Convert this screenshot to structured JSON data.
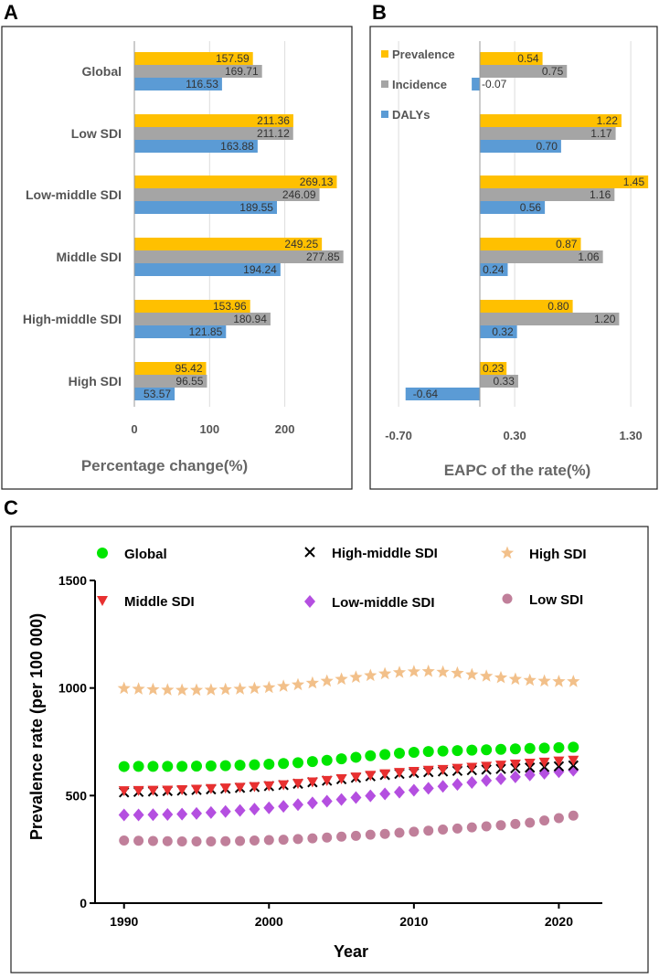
{
  "colors": {
    "prevalence": "#FFC000",
    "incidence": "#A5A5A5",
    "dalys": "#5B9BD5",
    "global": "#00E600",
    "middle": "#E83030",
    "highmiddle": "#000000",
    "lowmiddle": "#B44FE0",
    "high": "#F2C08A",
    "low": "#C07F9A"
  },
  "panels": {
    "a": "A",
    "b": "B",
    "c": "C"
  },
  "chart_data": [
    {
      "type": "bar",
      "orientation": "horizontal",
      "categories": [
        "Global",
        "Low SDI",
        "Low-middle SDI",
        "Middle SDI",
        "High-middle SDI",
        "High SDI"
      ],
      "series": [
        {
          "name": "Prevalence",
          "values": [
            157.59,
            211.36,
            269.13,
            249.25,
            153.96,
            95.42
          ]
        },
        {
          "name": "Incidence",
          "values": [
            169.71,
            211.12,
            246.09,
            277.85,
            180.94,
            96.55
          ]
        },
        {
          "name": "DALYs",
          "values": [
            116.53,
            163.88,
            189.55,
            194.24,
            121.85,
            53.57
          ]
        }
      ],
      "labels": [
        [
          "157.59",
          "169.71",
          "116.53"
        ],
        [
          "211.36",
          "211.12",
          "163.88"
        ],
        [
          "269.13",
          "246.09",
          "189.55"
        ],
        [
          "249.25",
          "277.85",
          "194.24"
        ],
        [
          "153.96",
          "180.94",
          "121.85"
        ],
        [
          "95.42",
          "96.55",
          "53.57"
        ]
      ],
      "xlim": [
        0,
        280
      ],
      "xticks": [
        0,
        100,
        200
      ],
      "xtick_labels": [
        "0",
        "100",
        "200"
      ],
      "xlabel": "Percentage change(%)"
    },
    {
      "type": "bar",
      "orientation": "horizontal",
      "series": [
        {
          "name": "Prevalence",
          "values": [
            0.54,
            1.22,
            1.45,
            0.87,
            0.8,
            0.23
          ]
        },
        {
          "name": "Incidence",
          "values": [
            0.75,
            1.17,
            1.16,
            1.06,
            1.2,
            0.33
          ]
        },
        {
          "name": "DALYs",
          "values": [
            -0.07,
            0.7,
            0.56,
            0.24,
            0.32,
            -0.64
          ]
        }
      ],
      "labels": [
        [
          "0.54",
          "0.75",
          "-0.07"
        ],
        [
          "1.22",
          "1.17",
          "0.70"
        ],
        [
          "1.45",
          "1.16",
          "0.56"
        ],
        [
          "0.87",
          "1.06",
          "0.24"
        ],
        [
          "0.80",
          "1.20",
          "0.32"
        ],
        [
          "0.23",
          "0.33",
          "-0.64"
        ]
      ],
      "legend": [
        "Prevalence",
        "Incidence",
        "DALYs"
      ],
      "xlim": [
        -0.7,
        1.45
      ],
      "xticks": [
        -0.7,
        0.3,
        1.3
      ],
      "xtick_labels": [
        "-0.70",
        "0.30",
        "1.30"
      ],
      "xlabel": "EAPC of the rate(%)"
    },
    {
      "type": "scatter",
      "x": [
        1990,
        1991,
        1992,
        1993,
        1994,
        1995,
        1996,
        1997,
        1998,
        1999,
        2000,
        2001,
        2002,
        2003,
        2004,
        2005,
        2006,
        2007,
        2008,
        2009,
        2010,
        2011,
        2012,
        2013,
        2014,
        2015,
        2016,
        2017,
        2018,
        2019,
        2020,
        2021
      ],
      "series": [
        {
          "name": "Global",
          "values": [
            635,
            636,
            636,
            636,
            636,
            637,
            638,
            639,
            641,
            643,
            646,
            649,
            653,
            658,
            664,
            671,
            678,
            685,
            691,
            697,
            701,
            705,
            707,
            709,
            711,
            713,
            715,
            717,
            719,
            721,
            723,
            725
          ]
        },
        {
          "name": "Middle SDI",
          "values": [
            522,
            523,
            524,
            525,
            527,
            529,
            532,
            535,
            538,
            541,
            545,
            550,
            556,
            563,
            570,
            578,
            586,
            594,
            601,
            607,
            612,
            617,
            621,
            626,
            631,
            636,
            641,
            646,
            650,
            655,
            660,
            664
          ]
        },
        {
          "name": "High-middle SDI",
          "values": [
            515,
            517,
            519,
            521,
            523,
            526,
            529,
            532,
            536,
            540,
            544,
            549,
            555,
            562,
            569,
            576,
            583,
            590,
            596,
            601,
            605,
            609,
            612,
            615,
            618,
            621,
            624,
            627,
            630,
            633,
            636,
            640
          ]
        },
        {
          "name": "Low-middle SDI",
          "values": [
            410,
            410,
            411,
            412,
            414,
            417,
            421,
            426,
            431,
            437,
            443,
            450,
            458,
            466,
            474,
            482,
            491,
            499,
            508,
            516,
            525,
            534,
            543,
            552,
            561,
            570,
            578,
            587,
            596,
            604,
            611,
            618
          ]
        },
        {
          "name": "High SDI",
          "values": [
            998,
            995,
            993,
            991,
            990,
            990,
            991,
            993,
            995,
            998,
            1002,
            1008,
            1015,
            1023,
            1032,
            1041,
            1050,
            1058,
            1066,
            1072,
            1076,
            1077,
            1074,
            1069,
            1062,
            1055,
            1048,
            1041,
            1036,
            1032,
            1030,
            1030
          ]
        },
        {
          "name": "Low SDI",
          "values": [
            291,
            290,
            289,
            288,
            287,
            287,
            287,
            288,
            289,
            291,
            293,
            295,
            298,
            301,
            305,
            309,
            313,
            318,
            322,
            327,
            332,
            337,
            342,
            347,
            352,
            357,
            362,
            368,
            374,
            384,
            395,
            407
          ]
        }
      ],
      "xlim": [
        1988,
        2023
      ],
      "ylim": [
        0,
        1500
      ],
      "xticks": [
        1990,
        2000,
        2010,
        2020
      ],
      "yticks": [
        0,
        500,
        1000,
        1500
      ],
      "xlabel": "Year",
      "ylabel": "Prevalence rate (per 100 000)",
      "legend": [
        "Global",
        "High-middle SDI",
        "High SDI",
        "Middle SDI",
        "Low-middle SDI",
        "Low SDI"
      ]
    }
  ]
}
